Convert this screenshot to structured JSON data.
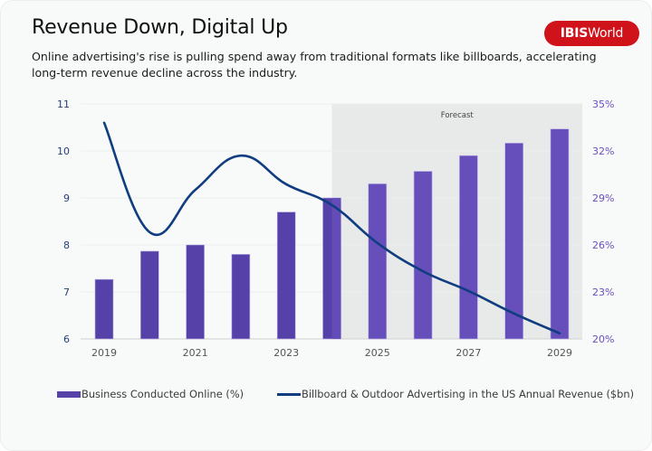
{
  "header": {
    "title": "Revenue Down, Digital Up",
    "subtitle": "Online advertising's rise is pulling spend away from traditional formats like billboards, accelerating long-term revenue decline across the industry.",
    "logo_bold": "IBIS",
    "logo_regular": "World"
  },
  "colors": {
    "bar_historic": "#5541a8",
    "bar_forecast": "#664fbb",
    "line": "#0f3d80",
    "forecast_band": "#e8e9e9",
    "logo": "#d0121b"
  },
  "chart_data": {
    "type": "bar+line",
    "title": "Revenue Down, Digital Up",
    "categories": [
      "2019",
      "2020",
      "2021",
      "2022",
      "2023",
      "2024",
      "2025",
      "2026",
      "2027",
      "2028",
      "2029"
    ],
    "x_tick_labels": [
      "2019",
      "2021",
      "2023",
      "2025",
      "2027",
      "2029"
    ],
    "forecast_start": "2024",
    "forecast_label": "Forecast",
    "series": [
      {
        "name": "Business Conducted Online (%)",
        "type": "bar",
        "axis": "right",
        "values": [
          23.8,
          25.6,
          26.0,
          25.4,
          28.1,
          29.0,
          29.9,
          30.7,
          31.7,
          32.5,
          33.4
        ]
      },
      {
        "name": "Billboard & Outdoor Advertising in the US Annual Revenue ($bn)",
        "type": "line",
        "axis": "left",
        "values": [
          10.6,
          8.27,
          9.17,
          9.9,
          9.29,
          8.85,
          8.04,
          7.44,
          7.02,
          6.54,
          6.12
        ]
      }
    ],
    "y_left": {
      "label": "",
      "range": [
        6,
        11
      ],
      "ticks": [
        "11",
        "10",
        "9",
        "8",
        "7",
        "6"
      ]
    },
    "y_right": {
      "label": "",
      "range": [
        20,
        35
      ],
      "ticks": [
        "35%",
        "32%",
        "29%",
        "26%",
        "23%",
        "20%"
      ]
    },
    "grid": true,
    "legend_position": "bottom"
  },
  "legend": {
    "bar_label": "Business Conducted Online (%)",
    "line_label": "Billboard & Outdoor Advertising in the US Annual Revenue ($bn)"
  }
}
